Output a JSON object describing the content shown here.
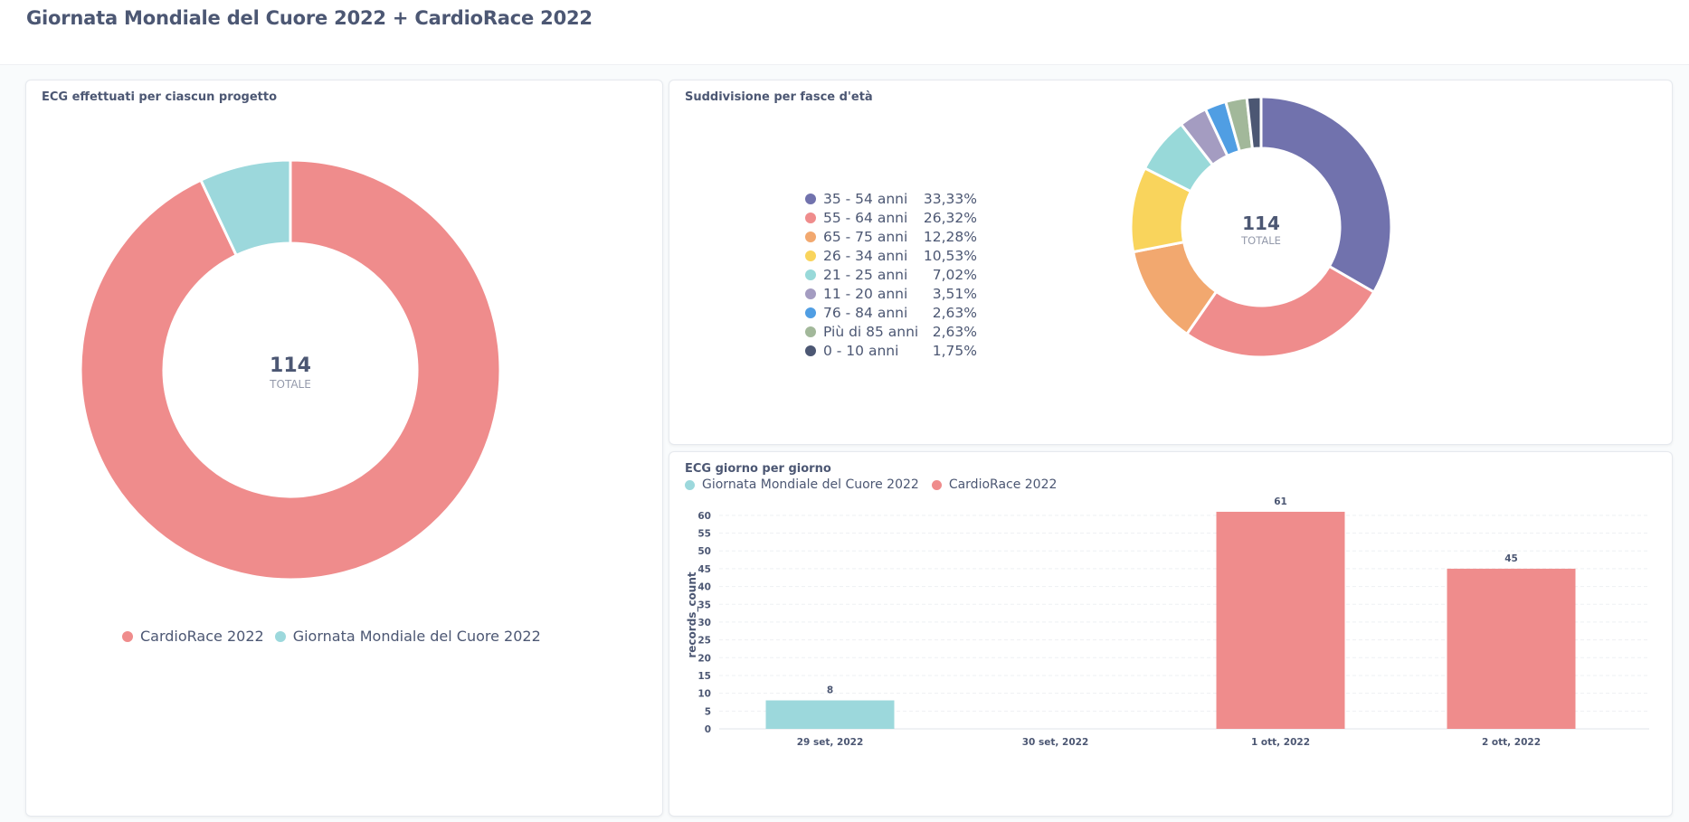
{
  "page": {
    "title": "Giornata Mondiale del Cuore 2022 + CardioRace 2022"
  },
  "colors": {
    "giornata": "#9cd8dc",
    "cardiorace": "#ef8c8c"
  },
  "cards": {
    "projects": {
      "title": "ECG effettuati per ciascun progetto",
      "center_value": "114",
      "center_label": "TOTALE"
    },
    "age": {
      "title": "Suddivisione per fasce d'età",
      "center_value": "114",
      "center_label": "TOTALE"
    },
    "daily": {
      "title": "ECG giorno per giorno",
      "legend": [
        "Giornata Mondiale del Cuore 2022",
        "CardioRace 2022"
      ]
    }
  },
  "chart_data": [
    {
      "type": "pie",
      "title": "ECG effettuati per ciascun progetto",
      "labels": [
        "CardioRace 2022",
        "Giornata Mondiale del Cuore 2022"
      ],
      "values": [
        106,
        8
      ],
      "colors": [
        "#ef8c8c",
        "#9cd8dc"
      ],
      "total": 114,
      "legend_position": "bottom"
    },
    {
      "type": "pie",
      "title": "Suddivisione per fasce d'età",
      "labels": [
        "35 - 54 anni",
        "55 - 64 anni",
        "65 - 75 anni",
        "26 - 34 anni",
        "21 - 25 anni",
        "11 - 20 anni",
        "76 - 84 anni",
        "Più di 85 anni",
        "0 - 10 anni"
      ],
      "percent_labels": [
        "33,33%",
        "26,32%",
        "12,28%",
        "10,53%",
        "7,02%",
        "3,51%",
        "2,63%",
        "2,63%",
        "1,75%"
      ],
      "values": [
        38,
        30,
        14,
        12,
        8,
        4,
        3,
        3,
        2
      ],
      "colors": [
        "#7172ad",
        "#ef8c8c",
        "#f2a86f",
        "#f9d45c",
        "#98d9d9",
        "#a49cc1",
        "#509ee3",
        "#a2b89a",
        "#4c5773"
      ],
      "total": 114,
      "legend_position": "left"
    },
    {
      "type": "bar",
      "title": "ECG giorno per giorno",
      "categories": [
        "29 set, 2022",
        "30 set, 2022",
        "1 ott, 2022",
        "2 ott, 2022"
      ],
      "series": [
        {
          "name": "Giornata Mondiale del Cuore 2022",
          "values": [
            8,
            null,
            null,
            null
          ],
          "color": "#9cd8dc"
        },
        {
          "name": "CardioRace 2022",
          "values": [
            null,
            null,
            61,
            45
          ],
          "color": "#ef8c8c"
        }
      ],
      "data_labels": [
        "8",
        "61",
        "45"
      ],
      "ylabel": "records_count",
      "ylim": [
        0,
        62
      ],
      "yticks": [
        "0",
        "5",
        "10",
        "15",
        "20",
        "25",
        "30",
        "35",
        "40",
        "45",
        "50",
        "55",
        "60"
      ],
      "legend_position": "top-left",
      "grid": true
    }
  ]
}
